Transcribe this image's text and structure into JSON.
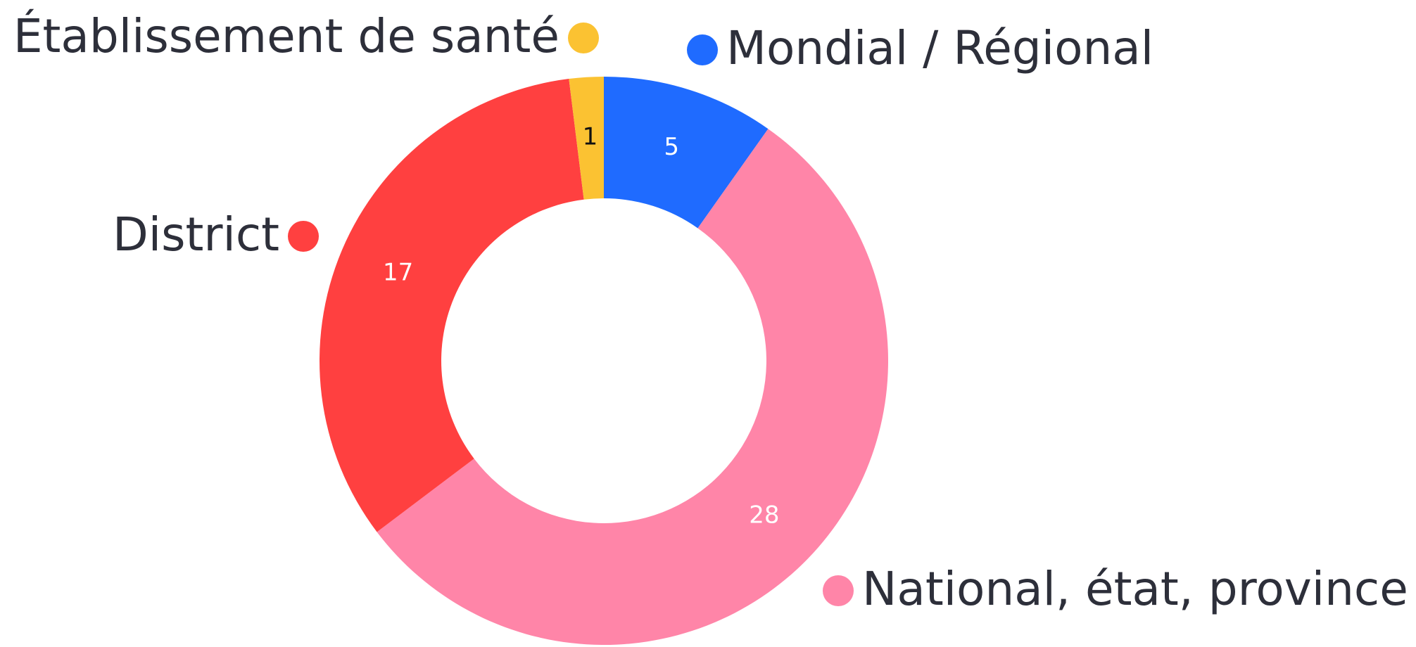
{
  "chart_data": {
    "type": "donut",
    "categories": [
      "Mondial / Régional",
      "National, état, province",
      "District",
      "Établissement de santé"
    ],
    "values": [
      5,
      28,
      17,
      1
    ],
    "colors": [
      "#1f6bff",
      "#ff85a8",
      "#ff4040",
      "#fbc232"
    ],
    "label_colors": [
      "#ffffff",
      "#ffffff",
      "#ffffff",
      "#111111"
    ]
  }
}
